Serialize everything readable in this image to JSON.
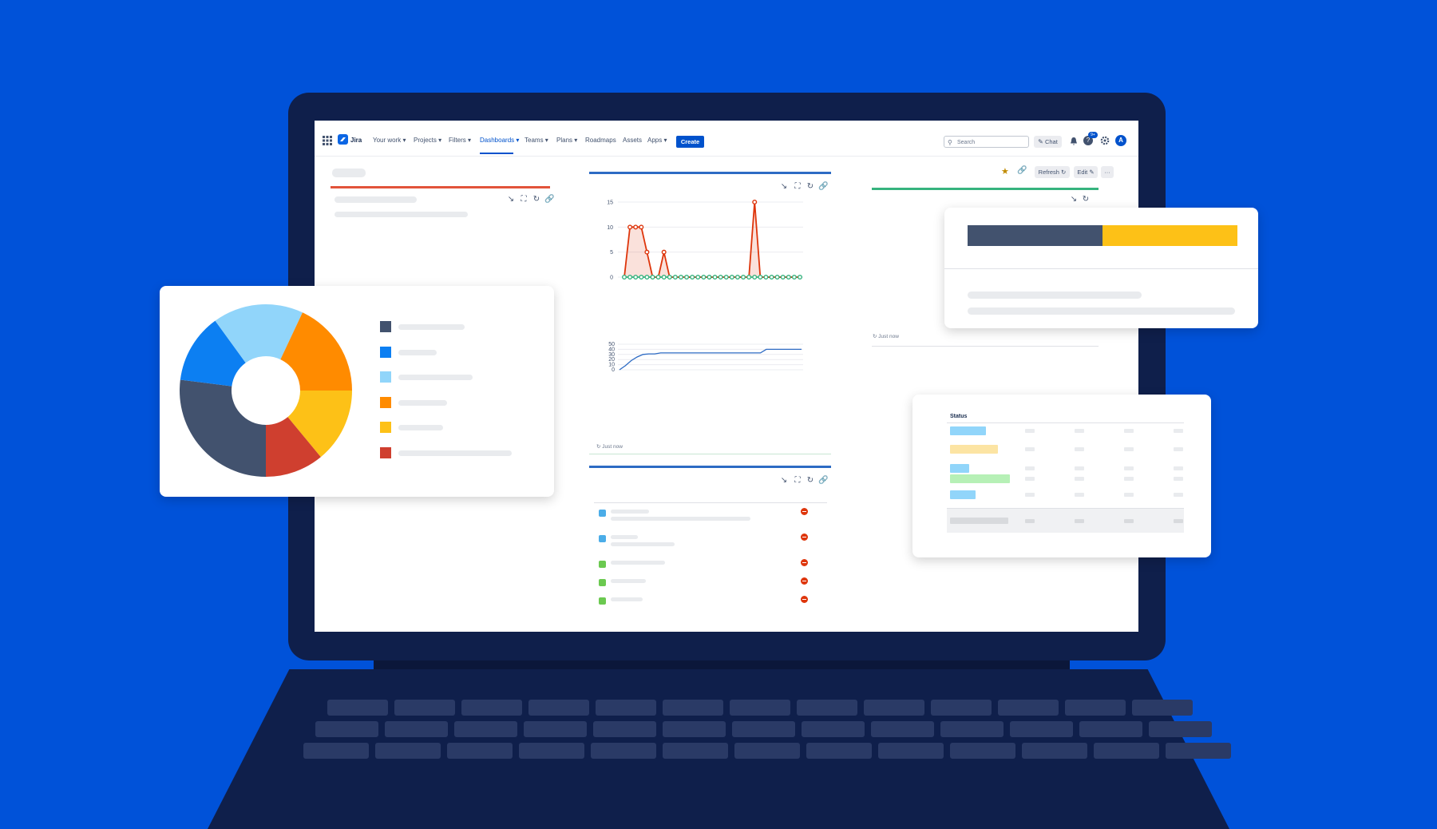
{
  "nav": {
    "app_name": "Jira",
    "items": [
      "Your work",
      "Projects",
      "Filters",
      "Dashboards",
      "Teams",
      "Plans",
      "Roadmaps",
      "Assets",
      "Apps"
    ],
    "dropdown_items": [
      true,
      true,
      true,
      true,
      true,
      true,
      false,
      false,
      true
    ],
    "active": "Dashboards",
    "create_label": "Create",
    "search_placeholder": "Search",
    "chat_label": "Chat",
    "notification_badge": "9+",
    "avatar_initial": "A"
  },
  "dashboard_toolbar": {
    "refresh_label": "Refresh",
    "edit_label": "Edit",
    "more_label": "···"
  },
  "gadgets": {
    "chart_refreshed": "Just now",
    "right_refreshed": "Just now"
  },
  "status_table": {
    "header": "Status"
  },
  "chart_data": [
    {
      "type": "line",
      "ylim": [
        0,
        15
      ],
      "yticks": [
        0,
        5,
        10,
        15
      ],
      "series": [
        {
          "color": "#de350b",
          "values": [
            0,
            10,
            10,
            10,
            5,
            0,
            0,
            5,
            0,
            0,
            0,
            0,
            0,
            0,
            0,
            0,
            0,
            0,
            0,
            0,
            0,
            0,
            0,
            15,
            0,
            0,
            0,
            0,
            0,
            0,
            0,
            0
          ]
        },
        {
          "color": "#36b37e",
          "values": [
            0,
            0,
            0,
            0,
            0,
            0,
            0,
            0,
            0,
            0,
            0,
            0,
            0,
            0,
            0,
            0,
            0,
            0,
            0,
            0,
            0,
            0,
            0,
            0,
            0,
            0,
            0,
            0,
            0,
            0,
            0,
            0
          ]
        }
      ]
    },
    {
      "type": "line",
      "ylim": [
        0,
        50
      ],
      "yticks": [
        0,
        10,
        20,
        30,
        40,
        50
      ],
      "series": [
        {
          "color": "#2d6bc4",
          "values": [
            0,
            8,
            18,
            25,
            30,
            31,
            31,
            33,
            33,
            33,
            33,
            33,
            33,
            33,
            33,
            33,
            33,
            33,
            33,
            33,
            33,
            33,
            33,
            33,
            33,
            40,
            40,
            40,
            40,
            40,
            40,
            40
          ]
        }
      ]
    },
    {
      "type": "pie",
      "slices": [
        {
          "color": "#42526e",
          "value": 27
        },
        {
          "color": "#0c7ff2",
          "value": 13
        },
        {
          "color": "#91d5fa",
          "value": 17
        },
        {
          "color": "#ff8b00",
          "value": 18
        },
        {
          "color": "#fdc117",
          "value": 14
        },
        {
          "color": "#cf3f2f",
          "value": 11
        }
      ]
    },
    {
      "type": "bar",
      "stacked": true,
      "series": [
        {
          "color": "#42526e",
          "value": 50
        },
        {
          "color": "#fdc117",
          "value": 50
        }
      ]
    }
  ]
}
